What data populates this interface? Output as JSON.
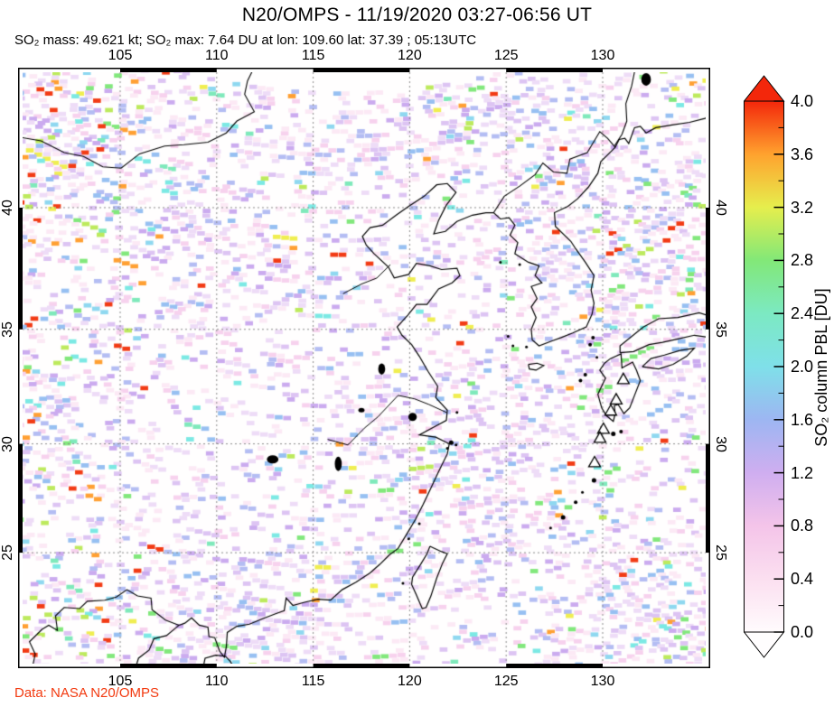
{
  "header": {
    "title": "N20/OMPS - 11/19/2020 03:27-06:56 UT",
    "subtitle": "SO₂ mass: 49.621 kt; SO₂ max: 7.64 DU at lon: 109.60 lat: 37.39 ; 05:13UTC"
  },
  "footer": {
    "credit": "Data: NASA N20/OMPS",
    "credit_color": "#f23a10"
  },
  "axes": {
    "lon_ticks": [
      {
        "label": "105",
        "lon": 105
      },
      {
        "label": "110",
        "lon": 110
      },
      {
        "label": "115",
        "lon": 115
      },
      {
        "label": "120",
        "lon": 120
      },
      {
        "label": "125",
        "lon": 125
      },
      {
        "label": "130",
        "lon": 130
      }
    ],
    "lat_ticks": [
      {
        "label": "40",
        "lat": 40
      },
      {
        "label": "35",
        "lat": 35
      },
      {
        "label": "30",
        "lat": 30
      },
      {
        "label": "25",
        "lat": 25
      }
    ]
  },
  "colorbar": {
    "title": "SO₂ column PBL [DU]",
    "tick_labels": [
      "4.0",
      "3.6",
      "3.2",
      "2.8",
      "2.4",
      "2.0",
      "1.6",
      "1.2",
      "0.8",
      "0.4",
      "0.0"
    ],
    "value_range": [
      0.0,
      4.0
    ],
    "over_color": "#f3270b",
    "under_color": "#fffdfe",
    "stops": [
      [
        0.0,
        "#fffbfd"
      ],
      [
        0.4,
        "#fbdff0"
      ],
      [
        0.8,
        "#f4c4e9"
      ],
      [
        1.2,
        "#cfaef0"
      ],
      [
        1.6,
        "#9db6f2"
      ],
      [
        2.0,
        "#7fe0e9"
      ],
      [
        2.4,
        "#7ce9c2"
      ],
      [
        2.8,
        "#82e878"
      ],
      [
        3.2,
        "#e6ee4d"
      ],
      [
        3.6,
        "#ffa22e"
      ],
      [
        4.0,
        "#f3270b"
      ]
    ]
  },
  "map": {
    "projection": "mercator",
    "lon_range": [
      99.7,
      135.5
    ],
    "lat_range": [
      19.5,
      45.3
    ],
    "grid_lon": [
      105,
      110,
      115,
      120,
      125,
      130
    ],
    "grid_lat": [
      25,
      30,
      35,
      40
    ],
    "grid_color": "#8a8a8a",
    "palette": {
      "pale": [
        [
          "#fce9f5",
          0.26
        ],
        [
          "#f7d2ee",
          0.14
        ],
        [
          "#eedcf7",
          0.22
        ],
        [
          "#ddc4f3",
          0.14
        ],
        [
          "#cbabef",
          0.08
        ],
        [
          "#b4bdf3",
          0.09
        ],
        [
          "#97c0f2",
          0.05
        ],
        [
          "#8fd8f0",
          0.02
        ]
      ],
      "saturated": [
        [
          "#7ce9e4",
          0.2
        ],
        [
          "#82e87c",
          0.22
        ],
        [
          "#7fe9bb",
          0.1
        ],
        [
          "#bdea5d",
          0.12
        ],
        [
          "#f0ee51",
          0.09
        ],
        [
          "#ffa033",
          0.12
        ],
        [
          "#f23b15",
          0.15
        ]
      ]
    },
    "volcano_markers": [
      {
        "lon": 131.07,
        "lat": 32.86
      },
      {
        "lon": 130.7,
        "lat": 31.97
      },
      {
        "lon": 130.42,
        "lat": 31.48
      },
      {
        "lon": 130.04,
        "lat": 30.67
      },
      {
        "lon": 129.86,
        "lat": 30.27
      },
      {
        "lon": 129.58,
        "lat": 29.17
      }
    ],
    "coastlines": [
      [
        [
          105.8,
          19.5
        ],
        [
          105.95,
          19.95
        ],
        [
          106.5,
          20.35
        ],
        [
          106.75,
          20.9
        ],
        [
          107.4,
          21.05
        ],
        [
          108.05,
          21.55
        ],
        [
          108.35,
          21.65
        ],
        [
          108.7,
          21.9
        ],
        [
          109.1,
          21.55
        ],
        [
          109.55,
          21.45
        ],
        [
          109.6,
          21.0
        ],
        [
          109.9,
          20.95
        ],
        [
          110.15,
          20.3
        ],
        [
          110.4,
          20.0
        ],
        [
          110.5,
          20.5
        ],
        [
          110.55,
          21.2
        ],
        [
          111.05,
          21.5
        ],
        [
          111.7,
          21.6
        ],
        [
          112.35,
          21.85
        ],
        [
          113.05,
          22.1
        ],
        [
          113.5,
          22.25
        ],
        [
          113.6,
          22.85
        ],
        [
          113.95,
          22.5
        ],
        [
          114.55,
          22.65
        ],
        [
          115.25,
          22.8
        ],
        [
          115.9,
          22.75
        ],
        [
          116.5,
          23.25
        ],
        [
          117.2,
          23.6
        ],
        [
          117.95,
          24.05
        ],
        [
          118.45,
          24.45
        ],
        [
          118.95,
          24.9
        ],
        [
          119.4,
          25.2
        ],
        [
          119.9,
          25.95
        ],
        [
          120.3,
          26.55
        ],
        [
          120.7,
          27.25
        ],
        [
          121.1,
          28.0
        ],
        [
          121.5,
          28.75
        ],
        [
          121.95,
          29.55
        ],
        [
          122.05,
          30.0
        ],
        [
          121.35,
          30.3
        ],
        [
          120.5,
          30.4
        ],
        [
          121.25,
          30.75
        ],
        [
          121.9,
          31.05
        ],
        [
          121.95,
          31.5
        ],
        [
          121.35,
          32.05
        ],
        [
          121.45,
          32.55
        ],
        [
          120.95,
          33.2
        ],
        [
          120.5,
          33.85
        ],
        [
          120.1,
          34.35
        ],
        [
          119.6,
          34.75
        ],
        [
          119.35,
          35.1
        ],
        [
          119.9,
          35.6
        ],
        [
          120.35,
          36.05
        ],
        [
          120.9,
          36.05
        ],
        [
          121.5,
          36.7
        ],
        [
          122.2,
          36.95
        ],
        [
          122.6,
          37.25
        ],
        [
          122.45,
          37.55
        ],
        [
          121.65,
          37.5
        ],
        [
          121.05,
          37.65
        ],
        [
          120.35,
          37.75
        ],
        [
          119.95,
          37.3
        ],
        [
          119.2,
          37.15
        ],
        [
          118.9,
          37.6
        ],
        [
          118.15,
          38.15
        ],
        [
          117.75,
          38.5
        ],
        [
          117.55,
          38.85
        ],
        [
          117.95,
          39.2
        ],
        [
          118.6,
          39.3
        ],
        [
          119.3,
          39.7
        ],
        [
          119.95,
          40.05
        ],
        [
          120.75,
          40.45
        ],
        [
          121.4,
          40.9
        ],
        [
          121.95,
          40.95
        ],
        [
          122.4,
          40.6
        ],
        [
          121.9,
          40.1
        ],
        [
          121.5,
          39.5
        ],
        [
          121.25,
          38.95
        ],
        [
          121.85,
          39.05
        ],
        [
          122.45,
          39.45
        ],
        [
          123.25,
          39.7
        ],
        [
          123.95,
          39.8
        ],
        [
          124.35,
          39.8
        ],
        [
          124.7,
          39.55
        ],
        [
          125.15,
          39.6
        ],
        [
          125.45,
          39.3
        ],
        [
          125.2,
          38.9
        ],
        [
          125.6,
          38.6
        ],
        [
          125.45,
          38.15
        ],
        [
          126.15,
          37.8
        ],
        [
          126.7,
          37.65
        ],
        [
          126.5,
          37.25
        ],
        [
          126.85,
          36.95
        ],
        [
          126.3,
          36.8
        ],
        [
          126.6,
          36.3
        ],
        [
          126.3,
          35.95
        ],
        [
          126.55,
          35.5
        ],
        [
          126.3,
          35.0
        ],
        [
          126.35,
          34.55
        ],
        [
          126.7,
          34.3
        ],
        [
          127.35,
          34.5
        ],
        [
          127.85,
          34.65
        ],
        [
          128.45,
          34.85
        ],
        [
          129.15,
          35.1
        ],
        [
          129.45,
          35.65
        ],
        [
          129.55,
          36.1
        ],
        [
          129.4,
          36.65
        ],
        [
          129.55,
          37.25
        ],
        [
          129.1,
          37.8
        ],
        [
          128.6,
          38.35
        ],
        [
          128.35,
          38.65
        ],
        [
          127.55,
          39.25
        ],
        [
          127.5,
          39.8
        ],
        [
          128.2,
          40.05
        ],
        [
          128.7,
          40.35
        ],
        [
          129.25,
          40.8
        ],
        [
          129.75,
          41.35
        ],
        [
          129.9,
          41.8
        ],
        [
          130.65,
          42.35
        ],
        [
          130.85,
          42.65
        ],
        [
          131.15,
          42.7
        ],
        [
          131.35,
          42.5
        ],
        [
          131.65,
          43.1
        ],
        [
          131.95,
          43.15
        ],
        [
          132.25,
          42.9
        ],
        [
          132.75,
          43.1
        ],
        [
          133.6,
          43.2
        ],
        [
          134.5,
          43.3
        ],
        [
          135.3,
          43.45
        ],
        [
          135.6,
          43.55
        ]
      ],
      [
        [
          109.3,
          19.5
        ],
        [
          109.4,
          19.95
        ],
        [
          109.95,
          20.1
        ],
        [
          110.45,
          20.05
        ],
        [
          110.7,
          19.8
        ],
        [
          110.9,
          19.5
        ]
      ],
      [
        [
          121.05,
          25.3
        ],
        [
          121.65,
          25.05
        ],
        [
          121.95,
          24.95
        ],
        [
          121.7,
          24.5
        ],
        [
          121.4,
          23.8
        ],
        [
          121.1,
          22.95
        ],
        [
          120.85,
          22.4
        ],
        [
          120.65,
          22.35
        ],
        [
          120.35,
          23.0
        ],
        [
          120.1,
          23.5
        ],
        [
          120.15,
          23.85
        ],
        [
          120.6,
          24.5
        ],
        [
          120.9,
          24.95
        ],
        [
          121.05,
          25.3
        ]
      ],
      [
        [
          130.0,
          32.65
        ],
        [
          129.75,
          32.2
        ],
        [
          129.95,
          31.6
        ],
        [
          130.2,
          31.25
        ],
        [
          130.55,
          31.0
        ],
        [
          130.65,
          31.35
        ],
        [
          130.6,
          31.7
        ],
        [
          130.8,
          31.75
        ],
        [
          131.1,
          31.35
        ],
        [
          131.4,
          31.6
        ],
        [
          131.65,
          32.15
        ],
        [
          131.95,
          32.8
        ],
        [
          131.75,
          33.25
        ],
        [
          131.55,
          33.6
        ],
        [
          131.0,
          33.35
        ],
        [
          130.95,
          33.95
        ],
        [
          130.4,
          33.75
        ],
        [
          130.1,
          33.55
        ],
        [
          129.85,
          33.25
        ],
        [
          130.15,
          32.9
        ],
        [
          130.0,
          32.65
        ]
      ],
      [
        [
          130.9,
          34.0
        ],
        [
          131.6,
          34.05
        ],
        [
          132.4,
          34.35
        ],
        [
          133.1,
          34.45
        ],
        [
          133.95,
          34.6
        ],
        [
          134.75,
          34.75
        ],
        [
          135.6,
          34.65
        ],
        [
          135.6,
          35.55
        ],
        [
          135.0,
          35.7
        ],
        [
          133.9,
          35.5
        ],
        [
          132.9,
          35.45
        ],
        [
          132.1,
          35.1
        ],
        [
          130.9,
          34.3
        ],
        [
          130.9,
          34.0
        ]
      ],
      [
        [
          132.05,
          33.4
        ],
        [
          132.9,
          33.3
        ],
        [
          133.65,
          33.5
        ],
        [
          134.35,
          33.85
        ],
        [
          134.75,
          34.2
        ],
        [
          134.0,
          34.1
        ],
        [
          133.2,
          33.9
        ],
        [
          132.5,
          33.75
        ],
        [
          132.05,
          33.4
        ]
      ],
      [
        [
          126.15,
          33.5
        ],
        [
          126.6,
          33.55
        ],
        [
          126.95,
          33.45
        ],
        [
          126.55,
          33.25
        ],
        [
          126.2,
          33.3
        ],
        [
          126.15,
          33.5
        ]
      ]
    ],
    "borders": [
      [
        [
          99.7,
          42.75
        ],
        [
          100.9,
          42.6
        ],
        [
          102.1,
          42.15
        ],
        [
          103.1,
          42.0
        ],
        [
          104.1,
          41.6
        ],
        [
          105.05,
          41.55
        ],
        [
          106.0,
          42.1
        ],
        [
          107.3,
          42.4
        ],
        [
          108.3,
          42.45
        ],
        [
          109.55,
          42.55
        ],
        [
          110.5,
          42.9
        ],
        [
          111.05,
          43.35
        ],
        [
          111.95,
          43.7
        ],
        [
          111.45,
          44.35
        ],
        [
          111.6,
          44.85
        ],
        [
          111.95,
          45.35
        ]
      ],
      [
        [
          124.35,
          39.8
        ],
        [
          124.9,
          40.45
        ],
        [
          125.7,
          40.85
        ],
        [
          126.5,
          41.3
        ],
        [
          126.9,
          41.75
        ],
        [
          127.45,
          41.4
        ],
        [
          128.15,
          41.35
        ],
        [
          128.3,
          41.9
        ],
        [
          129.2,
          42.15
        ],
        [
          129.85,
          42.95
        ],
        [
          130.25,
          42.7
        ],
        [
          130.65,
          42.35
        ]
      ],
      [
        [
          130.62,
          42.42
        ],
        [
          131.0,
          42.85
        ],
        [
          131.25,
          43.35
        ],
        [
          131.2,
          44.0
        ],
        [
          131.5,
          44.65
        ],
        [
          131.7,
          45.35
        ]
      ],
      [
        [
          100.45,
          19.5
        ],
        [
          100.6,
          20.15
        ],
        [
          100.3,
          20.75
        ],
        [
          100.95,
          21.35
        ],
        [
          101.3,
          21.55
        ],
        [
          101.75,
          21.3
        ],
        [
          101.65,
          22.0
        ],
        [
          102.1,
          22.4
        ],
        [
          102.9,
          22.35
        ],
        [
          103.3,
          22.7
        ],
        [
          104.2,
          22.75
        ],
        [
          104.8,
          22.9
        ],
        [
          105.35,
          23.25
        ],
        [
          105.9,
          22.95
        ],
        [
          106.6,
          22.85
        ],
        [
          106.65,
          22.3
        ],
        [
          107.35,
          21.8
        ],
        [
          108.05,
          21.55
        ]
      ]
    ],
    "rivers": [
      [
        [
          115.75,
          30.2
        ],
        [
          116.8,
          29.95
        ],
        [
          117.65,
          30.7
        ],
        [
          118.35,
          31.2
        ],
        [
          119.4,
          32.15
        ],
        [
          120.25,
          32.0
        ],
        [
          121.0,
          31.75
        ],
        [
          121.9,
          31.4
        ]
      ],
      [
        [
          116.55,
          36.5
        ],
        [
          117.5,
          36.9
        ],
        [
          118.3,
          37.15
        ],
        [
          119.0,
          37.7
        ]
      ]
    ],
    "lakes": [
      [
        120.15,
        31.2,
        0.22,
        0.18
      ],
      [
        118.55,
        33.3,
        0.18,
        0.25
      ],
      [
        116.3,
        29.1,
        0.18,
        0.32
      ],
      [
        112.9,
        29.3,
        0.3,
        0.18
      ],
      [
        117.5,
        31.5,
        0.16,
        0.1
      ],
      [
        132.25,
        44.9,
        0.25,
        0.28
      ]
    ],
    "islands": [
      [
        129.35,
        34.35,
        2
      ],
      [
        129.5,
        34.65,
        2
      ],
      [
        129.7,
        33.8,
        1.5
      ],
      [
        128.85,
        32.8,
        2
      ],
      [
        129.1,
        33.05,
        2
      ],
      [
        130.55,
        30.45,
        2.5
      ],
      [
        130.95,
        30.55,
        2
      ],
      [
        129.95,
        30.75,
        1.5
      ],
      [
        129.55,
        28.35,
        2.5
      ],
      [
        128.95,
        27.8,
        1.5
      ],
      [
        128.6,
        27.35,
        2
      ],
      [
        127.95,
        26.65,
        2.5
      ],
      [
        127.3,
        26.15,
        1.5
      ],
      [
        122.15,
        30.05,
        2.5
      ],
      [
        122.4,
        29.95,
        1.5
      ],
      [
        121.95,
        29.8,
        1.5
      ],
      [
        119.65,
        23.55,
        1.5
      ],
      [
        120.5,
        26.35,
        1.5
      ],
      [
        119.95,
        25.65,
        1.5
      ],
      [
        122.45,
        31.4,
        1.5
      ],
      [
        125.1,
        34.7,
        1.5
      ],
      [
        125.35,
        34.3,
        1.5
      ],
      [
        126.05,
        34.25,
        1.5
      ],
      [
        124.7,
        37.8,
        1.5
      ],
      [
        125.7,
        37.7,
        1.5
      ]
    ]
  }
}
